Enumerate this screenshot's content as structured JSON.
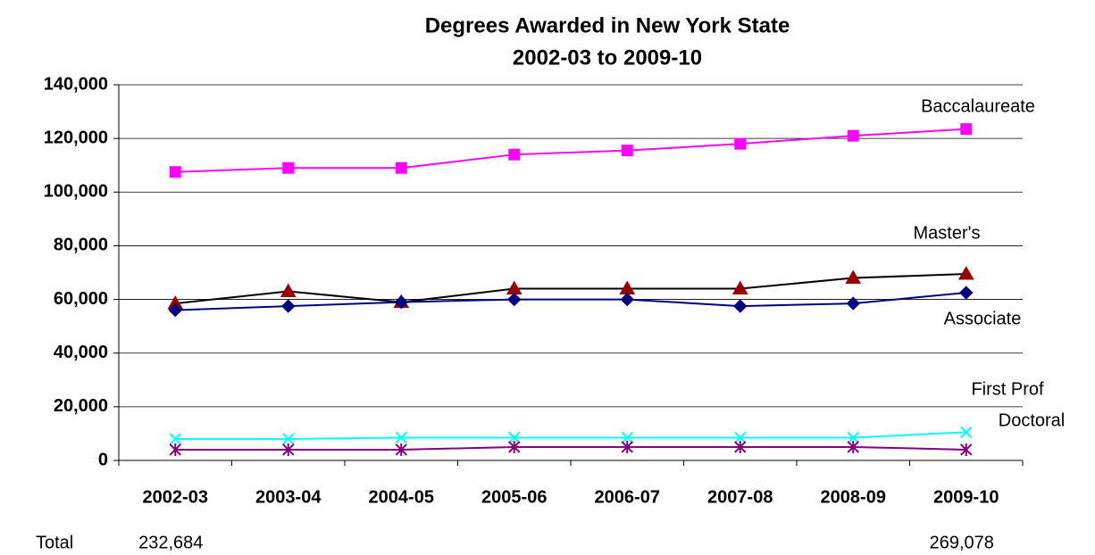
{
  "chart_data": {
    "type": "line",
    "title": "Degrees Awarded in New York State",
    "subtitle": "2002-03 to 2009-10",
    "categories": [
      "2002-03",
      "2003-04",
      "2004-05",
      "2005-06",
      "2006-07",
      "2007-08",
      "2008-09",
      "2009-10"
    ],
    "series": [
      {
        "name": "Baccalaureate",
        "color": "#ff00ff",
        "marker": "square",
        "values": [
          107500,
          109000,
          109000,
          114000,
          115500,
          118000,
          121000,
          123500
        ]
      },
      {
        "name": "Master's",
        "color": "#000000",
        "marker_color": "#990000",
        "marker": "triangle",
        "values": [
          58500,
          63000,
          59000,
          64000,
          64000,
          64000,
          68000,
          69500
        ]
      },
      {
        "name": "Associate",
        "color": "#000080",
        "marker": "diamond",
        "values": [
          56000,
          57500,
          59000,
          60000,
          60000,
          57500,
          58500,
          62500
        ]
      },
      {
        "name": "First Prof",
        "color": "#00ffff",
        "marker": "x",
        "values": [
          8000,
          8000,
          8500,
          8500,
          8500,
          8500,
          8500,
          10500
        ]
      },
      {
        "name": "Doctoral",
        "color": "#800080",
        "marker": "star",
        "values": [
          4000,
          4000,
          4000,
          5000,
          5000,
          5000,
          5000,
          4000
        ]
      }
    ],
    "ylim": [
      0,
      140000
    ],
    "yticks": [
      0,
      {
        "value": 20000,
        "label": "20,000"
      },
      {
        "value": 40000,
        "label": "40,000"
      },
      {
        "value": 60000,
        "label": "60,000"
      },
      {
        "value": 80000,
        "label": "80,000"
      },
      {
        "value": 100000,
        "label": "100,000"
      },
      {
        "value": 120000,
        "label": "120,000"
      },
      {
        "value": 140000,
        "label": "140,000"
      }
    ],
    "grid": true,
    "totals": {
      "label": "Total",
      "values": [
        232684,
        null,
        null,
        null,
        null,
        null,
        null,
        269078
      ],
      "value_labels": [
        "232,684",
        null,
        null,
        null,
        null,
        null,
        null,
        "269,078"
      ]
    }
  }
}
